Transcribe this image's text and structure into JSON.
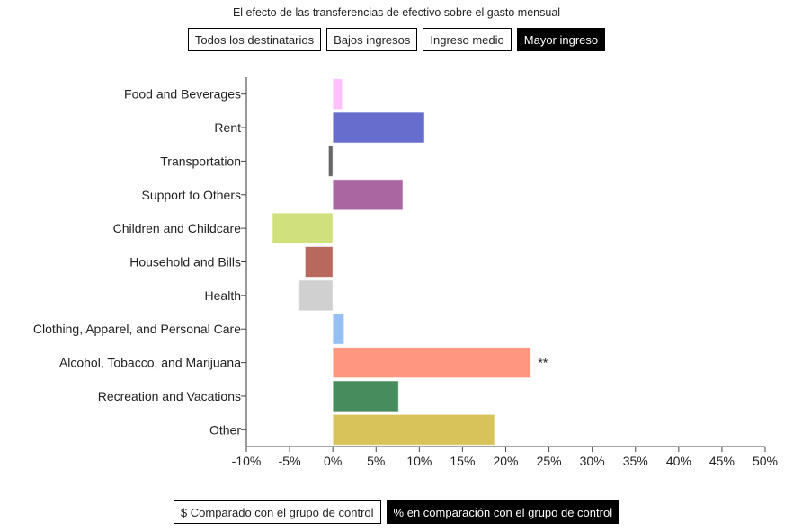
{
  "title": "El efecto de las transferencias de efectivo sobre el gasto mensual",
  "filters": [
    {
      "label": "Todos los destinatarios",
      "active": false
    },
    {
      "label": "Bajos ingresos",
      "active": false
    },
    {
      "label": "Ingreso medio",
      "active": false
    },
    {
      "label": "Mayor ingreso",
      "active": true
    }
  ],
  "modes": [
    {
      "label": "$ Comparado con el grupo de control",
      "active": false
    },
    {
      "label": "% en comparación con el grupo de control",
      "active": true
    }
  ],
  "chart_data": {
    "type": "bar",
    "orientation": "horizontal",
    "categories": [
      "Food and Beverages",
      "Rent",
      "Transportation",
      "Support to Others",
      "Children and Childcare",
      "Household and Bills",
      "Health",
      "Clothing, Apparel, and Personal Care",
      "Alcohol, Tobacco, and Marijuana",
      "Recreation and Vacations",
      "Other"
    ],
    "values": [
      1.1,
      10.6,
      -0.5,
      8.1,
      -7.0,
      -3.2,
      -3.9,
      1.3,
      22.9,
      7.6,
      18.7
    ],
    "colors": [
      "#ffc0fb",
      "#666dcd",
      "#666666",
      "#a966a0",
      "#d0e07c",
      "#b8685d",
      "#d0d0d0",
      "#95c0f5",
      "#ff967f",
      "#478c5c",
      "#d8c35a"
    ],
    "annotations": [
      "",
      "",
      "",
      "",
      "",
      "",
      "",
      "",
      "**",
      "",
      ""
    ],
    "xlim": [
      -10,
      50
    ],
    "xticks": [
      -10,
      -5,
      0,
      5,
      10,
      15,
      20,
      25,
      30,
      35,
      40,
      45,
      50
    ],
    "xtick_labels": [
      "-10%",
      "-5%",
      "0%",
      "5%",
      "10%",
      "15%",
      "20%",
      "25%",
      "30%",
      "35%",
      "40%",
      "45%",
      "50%"
    ],
    "xlabel": "",
    "ylabel": "",
    "grid": false
  }
}
